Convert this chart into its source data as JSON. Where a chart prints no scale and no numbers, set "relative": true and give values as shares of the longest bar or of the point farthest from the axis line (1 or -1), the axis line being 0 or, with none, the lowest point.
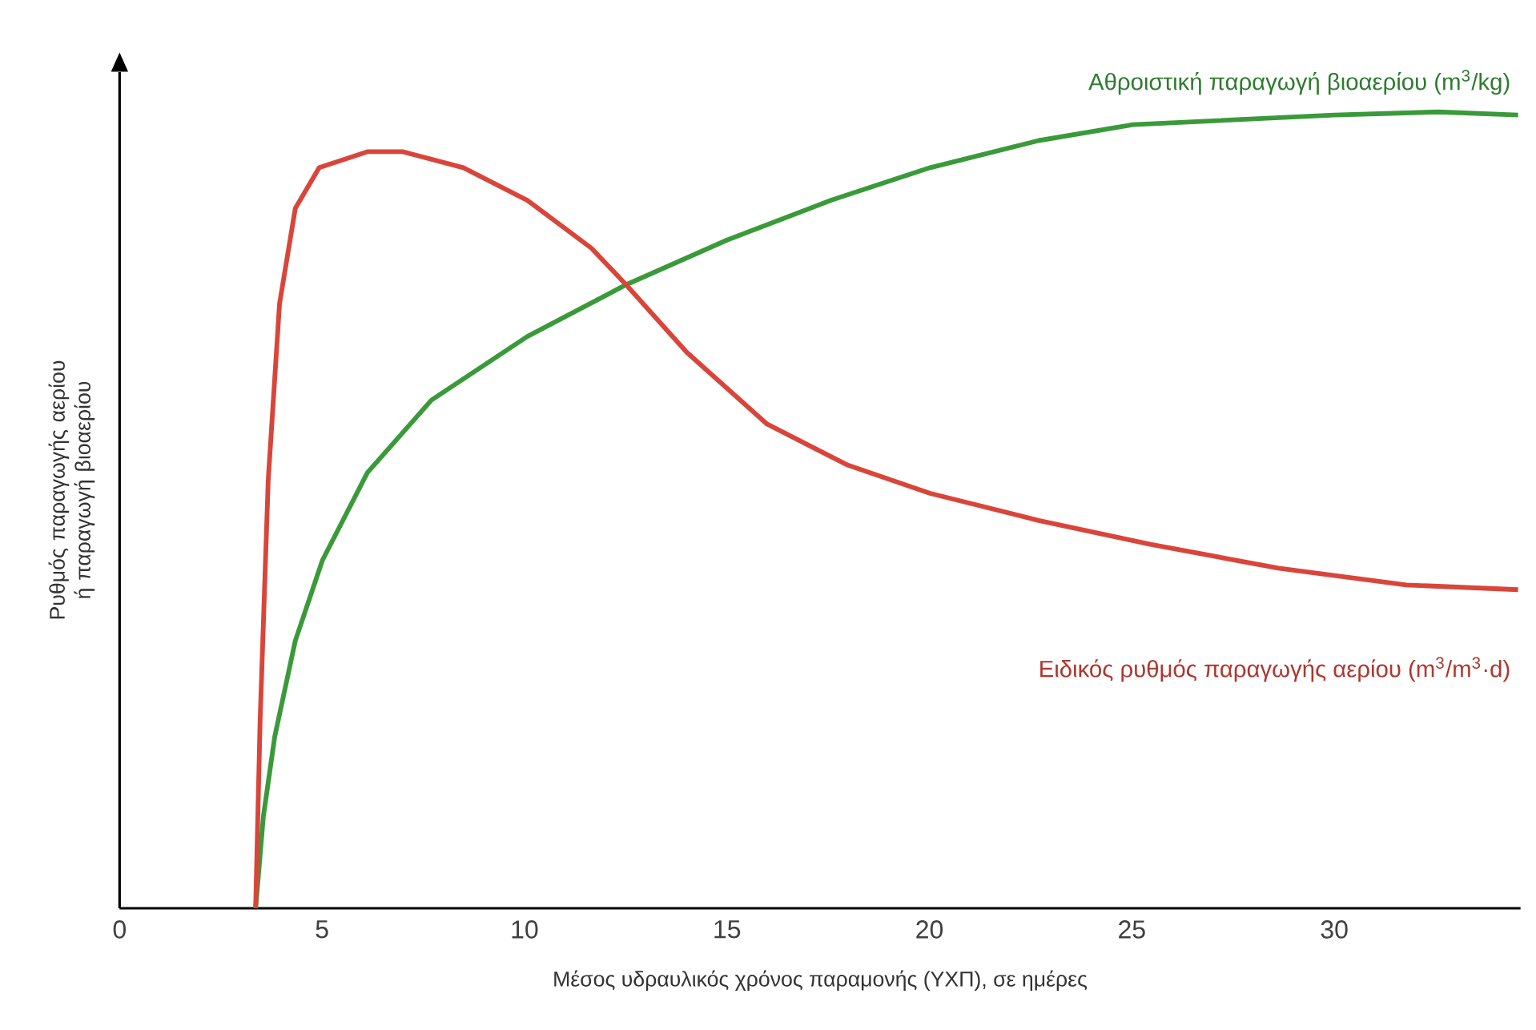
{
  "chart_data": {
    "type": "line",
    "relative": true,
    "xlabel": "Μέσος υδραυλικός χρόνος παραμονής (ΥΧΠ), σε ημέρες",
    "ylabel": "Ρυθμός παραγωγής αερίου ή παραγωγή βιοαερίου",
    "xlim": [
      0,
      34.6
    ],
    "xticks": [
      0,
      5,
      10,
      15,
      20,
      25,
      30
    ],
    "line_style": "solid",
    "marker": "none",
    "series": [
      {
        "name": "Αθροιστική παραγωγή βιοαερίου (m$^{3}$/kg)",
        "color": "#3a9a3a",
        "x": [
          3.36,
          3.55,
          3.83,
          4.34,
          5.01,
          6.12,
          7.7,
          10.07,
          12.51,
          15.0,
          17.57,
          20.02,
          22.7,
          25.03,
          30.0,
          32.57,
          34.54
        ],
        "values": [
          0,
          0.115,
          0.215,
          0.336,
          0.437,
          0.547,
          0.638,
          0.718,
          0.783,
          0.839,
          0.889,
          0.93,
          0.964,
          0.984,
          0.996,
          1.0,
          0.996
        ]
      },
      {
        "name": "Ειδικός ρυθμός παραγωγής αερίου (m$^{3}$/m$^{3}$·d)",
        "color": "#d9453a",
        "x": [
          3.36,
          3.47,
          3.67,
          3.95,
          4.34,
          4.93,
          6.12,
          6.99,
          8.49,
          10.07,
          11.65,
          12.51,
          14.01,
          15.99,
          17.96,
          20.02,
          22.7,
          25.46,
          28.62,
          31.78,
          34.54
        ],
        "values": [
          0,
          0.235,
          0.537,
          0.759,
          0.879,
          0.93,
          0.95,
          0.95,
          0.93,
          0.889,
          0.829,
          0.783,
          0.698,
          0.608,
          0.557,
          0.521,
          0.487,
          0.457,
          0.427,
          0.406,
          0.4
        ]
      }
    ]
  }
}
